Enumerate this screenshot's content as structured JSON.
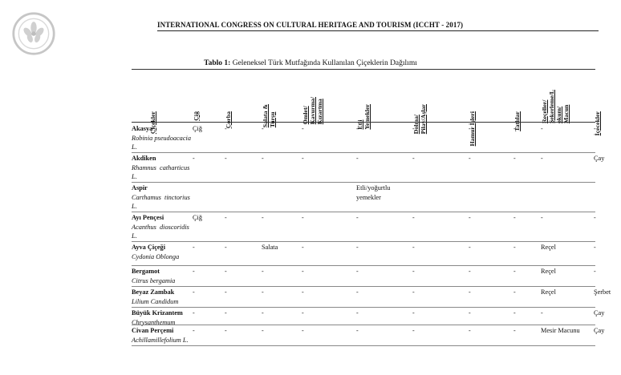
{
  "header": {
    "conference": "INTERNATIONAL CONGRESS ON CULTURAL HERITAGE AND TOURISM (ICCHT - 2017)"
  },
  "table": {
    "caption_label": "Tablo 1:",
    "caption_text": "Geleneksel Türk Mutfağında Kullanılan Çiçeklerin Dağılımı",
    "columns": [
      "Çiçekler",
      "Çiğ",
      "Çorba",
      "Salata &\nTurşu",
      "Omlet/\nKavurma/\nKızartma",
      "Etli\nYemekler",
      "Dolma/\nPilav/Aşlar",
      "Hamur İşleri",
      "Tatlılar",
      "Reçeller/\nŞekerleme/L\nokum/\nMacun",
      "İçecekler"
    ],
    "rows": [
      {
        "name": "Akasya",
        "sci": [
          "Robinia pseudoacacia",
          "L."
        ],
        "cells": [
          "Çiğ",
          "-",
          "-",
          "-",
          "-",
          "-",
          "-",
          "-",
          "-",
          "-"
        ]
      },
      {
        "name": "Akdiken",
        "sci": [
          "Rhamnus  catharticus",
          "L."
        ],
        "cells": [
          "-",
          "-",
          "-",
          "-",
          "-",
          "-",
          "-",
          "-",
          "-",
          "Çay"
        ]
      },
      {
        "name": "Aspir",
        "sci": [
          "Carthamus  tinctorius",
          "L."
        ],
        "cells": [
          "",
          "",
          "",
          "",
          "Etli/yoğurtlu\nyemekler",
          "",
          "",
          "",
          "",
          ""
        ]
      },
      {
        "name": "Ayı Pençesi",
        "sci": [
          "Acanthus  dioscoridis",
          "L."
        ],
        "cells": [
          "Çiğ",
          "-",
          "-",
          "-",
          "-",
          "-",
          "-",
          "-",
          "-",
          "-"
        ]
      },
      {
        "name": "Ayva Çiçeği",
        "sci": [
          "Cydonia Oblonga"
        ],
        "cells": [
          "-",
          "-",
          "Salata",
          "-",
          "-",
          "-",
          "-",
          "-",
          "Reçel",
          "-"
        ]
      },
      {
        "name": "Bergamot",
        "sci": [
          "Citrus bergamia"
        ],
        "cells": [
          "-",
          "-",
          "-",
          "-",
          "-",
          "-",
          "-",
          "-",
          "Reçel",
          "-"
        ]
      },
      {
        "name": "Beyaz Zambak",
        "sci": [
          "Lilium Candidum"
        ],
        "cells": [
          "-",
          "-",
          "-",
          "-",
          "-",
          "-",
          "-",
          "-",
          "Reçel",
          "Şerbet"
        ]
      },
      {
        "name": "Büyük Krizantem",
        "sci": [
          "Chrysanthemum"
        ],
        "cells": [
          "-",
          "-",
          "-",
          "-",
          "-",
          "-",
          "-",
          "-",
          "-",
          "Çay"
        ]
      },
      {
        "name": "Civan Perçemi",
        "sci": [
          "Achillamillefolium L."
        ],
        "cells": [
          "-",
          "-",
          "-",
          "-",
          "-",
          "-",
          "-",
          "-",
          "Mesir Macunu",
          "Çay"
        ]
      }
    ]
  }
}
